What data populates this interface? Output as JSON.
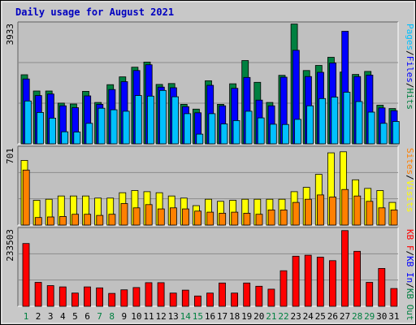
{
  "chart_data": {
    "type": "bar",
    "title": "Daily usage for August 2021",
    "days": [
      "1",
      "2",
      "3",
      "4",
      "5",
      "6",
      "7",
      "8",
      "9",
      "10",
      "11",
      "12",
      "13",
      "14",
      "15",
      "16",
      "17",
      "18",
      "19",
      "20",
      "21",
      "22",
      "23",
      "24",
      "25",
      "26",
      "27",
      "28",
      "29",
      "30",
      "31"
    ],
    "weekend_days": [
      "1",
      "7",
      "8",
      "14",
      "15",
      "21",
      "22",
      "28",
      "29"
    ],
    "colors": {
      "hits": "#008040",
      "files": "#0000ff",
      "pages": "#00c0ff",
      "visits": "#ffff00",
      "sites": "#ff8000",
      "kbytes": "#ff0000",
      "kb_in": "#0000ff",
      "kb_out": "#008040",
      "weekday_label": "#000000",
      "weekend_label": "#008040",
      "title": "#0000c0",
      "panel": "#c0c0c0",
      "frame": "#d8d8d8"
    },
    "panels": [
      {
        "name": "hits-files-pages",
        "ymax_label": "3933",
        "ymax": 3933,
        "legend": [
          {
            "text": "Pages",
            "color": "#00c0ff"
          },
          {
            "text": "/",
            "color": "#000000"
          },
          {
            "text": "Files",
            "color": "#0000ff"
          },
          {
            "text": "/",
            "color": "#000000"
          },
          {
            "text": "Hits",
            "color": "#008040"
          }
        ],
        "series": [
          {
            "name": "Hits",
            "color": "#008040",
            "values": [
              2290,
              1750,
              1750,
              1350,
              1320,
              1740,
              1370,
              1960,
              2220,
              2540,
              2710,
              1970,
              2000,
              1310,
              1150,
              2090,
              1310,
              1990,
              2760,
              2040,
              1370,
              2270,
              3970,
              2430,
              2600,
              2870,
              2380,
              2300,
              2400,
              1280,
              1170
            ]
          },
          {
            "name": "Files",
            "color": "#0000ff",
            "values": [
              2150,
              1600,
              1650,
              1260,
              1200,
              1590,
              1310,
              1800,
              2060,
              2430,
              2620,
              1880,
              1860,
              1230,
              1030,
              1940,
              1260,
              1840,
              2200,
              1450,
              1260,
              2210,
              3100,
              2230,
              2370,
              2680,
              3730,
              2230,
              2280,
              1190,
              1100
            ]
          },
          {
            "name": "Pages",
            "color": "#00c0ff",
            "values": [
              1420,
              1040,
              850,
              400,
              390,
              680,
              1180,
              1130,
              1080,
              1600,
              1580,
              1770,
              1560,
              1000,
              320,
              1000,
              660,
              770,
              1080,
              860,
              650,
              640,
              810,
              1260,
              1500,
              1550,
              1710,
              1400,
              1050,
              680,
              740
            ]
          }
        ]
      },
      {
        "name": "visits-sites",
        "ymax_label": "701",
        "ymax": 701,
        "legend": [
          {
            "text": "Sites",
            "color": "#ff8000"
          },
          {
            "text": "/",
            "color": "#000000"
          },
          {
            "text": "Visits",
            "color": "#ffff00"
          }
        ],
        "series": [
          {
            "name": "Visits",
            "color": "#ffff00",
            "values": [
              600,
              230,
              240,
              270,
              270,
              270,
              250,
              250,
              300,
              320,
              310,
              300,
              270,
              250,
              180,
              240,
              220,
              230,
              240,
              240,
              240,
              240,
              310,
              350,
              470,
              670,
              680,
              420,
              340,
              320,
              210
            ]
          },
          {
            "name": "Sites",
            "color": "#ff8000",
            "values": [
              510,
              70,
              75,
              80,
              100,
              100,
              90,
              100,
              200,
              160,
              190,
              150,
              160,
              150,
              130,
              120,
              110,
              120,
              110,
              100,
              140,
              140,
              210,
              240,
              280,
              260,
              330,
              270,
              220,
              160,
              140
            ]
          }
        ]
      },
      {
        "name": "kbytes",
        "ymax_label": "233503",
        "ymax": 233503,
        "legend": [
          {
            "text": "KB F",
            "color": "#ff0000"
          },
          {
            "text": "/",
            "color": "#000000"
          },
          {
            "text": "KB In",
            "color": "#0000ff"
          },
          {
            "text": "/",
            "color": "#000000"
          },
          {
            "text": "KB Out",
            "color": "#008040"
          }
        ],
        "series": [
          {
            "name": "KB F",
            "color": "#ff0000",
            "values": [
              194000,
              74000,
              64000,
              60000,
              41000,
              60000,
              57000,
              40000,
              51000,
              58000,
              73000,
              73000,
              41000,
              50000,
              32000,
              41000,
              72000,
              41000,
              72000,
              62000,
              53000,
              110000,
              155000,
              158000,
              152000,
              141000,
              234000,
              170000,
              74000,
              117000,
              55000
            ]
          }
        ]
      }
    ]
  }
}
